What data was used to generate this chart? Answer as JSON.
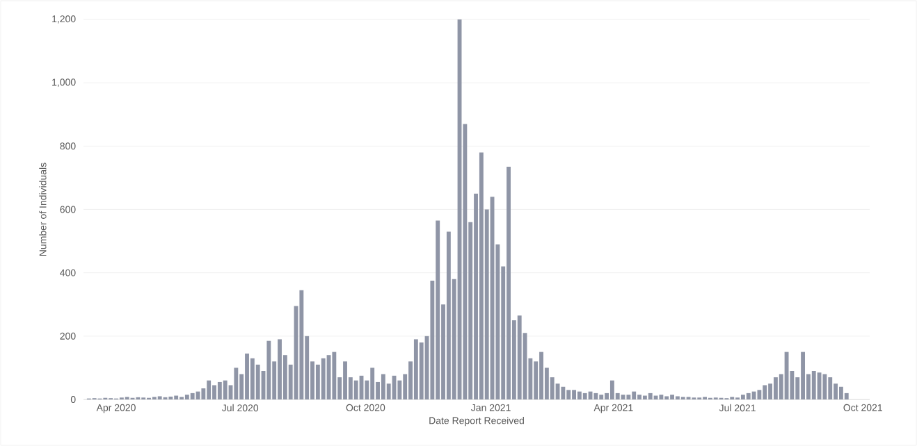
{
  "chart_data": {
    "type": "bar",
    "xlabel": "Date Report Received",
    "ylabel": "Number of Individuals",
    "color": "#8f95a6",
    "grid": "y",
    "xlim": [
      "2020-03-08",
      "2021-10-06"
    ],
    "ylim": [
      0,
      1200
    ],
    "yticks": [
      0,
      200,
      400,
      600,
      800,
      {
        "value": 1000,
        "label": "1,000"
      },
      {
        "value": 1200,
        "label": "1,200"
      }
    ],
    "xticks": [
      {
        "value": "2020-04-01",
        "label": "Apr 2020"
      },
      {
        "value": "2020-07-01",
        "label": "Jul 2020"
      },
      {
        "value": "2020-10-01",
        "label": "Oct 2020"
      },
      {
        "value": "2021-01-01",
        "label": "Jan 2021"
      },
      {
        "value": "2021-04-01",
        "label": "Apr 2021"
      },
      {
        "value": "2021-07-01",
        "label": "Jul 2021"
      },
      {
        "value": "2021-10-01",
        "label": "Oct 2021"
      }
    ],
    "x": [
      "2020-03-12",
      "2020-03-16",
      "2020-03-20",
      "2020-03-24",
      "2020-03-28",
      "2020-04-01",
      "2020-04-05",
      "2020-04-09",
      "2020-04-13",
      "2020-04-17",
      "2020-04-21",
      "2020-04-25",
      "2020-04-29",
      "2020-05-03",
      "2020-05-07",
      "2020-05-11",
      "2020-05-15",
      "2020-05-19",
      "2020-05-23",
      "2020-05-27",
      "2020-05-31",
      "2020-06-04",
      "2020-06-08",
      "2020-06-12",
      "2020-06-16",
      "2020-06-20",
      "2020-06-24",
      "2020-06-28",
      "2020-07-02",
      "2020-07-06",
      "2020-07-10",
      "2020-07-14",
      "2020-07-18",
      "2020-07-22",
      "2020-07-26",
      "2020-07-30",
      "2020-08-03",
      "2020-08-07",
      "2020-08-11",
      "2020-08-15",
      "2020-08-19",
      "2020-08-23",
      "2020-08-27",
      "2020-08-31",
      "2020-09-04",
      "2020-09-08",
      "2020-09-12",
      "2020-09-16",
      "2020-09-20",
      "2020-09-24",
      "2020-09-28",
      "2020-10-02",
      "2020-10-06",
      "2020-10-10",
      "2020-10-14",
      "2020-10-18",
      "2020-10-22",
      "2020-10-26",
      "2020-10-30",
      "2020-11-03",
      "2020-11-07",
      "2020-11-11",
      "2020-11-15",
      "2020-11-19",
      "2020-11-23",
      "2020-11-27",
      "2020-12-01",
      "2020-12-05",
      "2020-12-09",
      "2020-12-13",
      "2020-12-17",
      "2020-12-21",
      "2020-12-25",
      "2020-12-29",
      "2021-01-02",
      "2021-01-06",
      "2021-01-10",
      "2021-01-14",
      "2021-01-18",
      "2021-01-22",
      "2021-01-26",
      "2021-01-30",
      "2021-02-03",
      "2021-02-07",
      "2021-02-11",
      "2021-02-15",
      "2021-02-19",
      "2021-02-23",
      "2021-02-27",
      "2021-03-03",
      "2021-03-07",
      "2021-03-11",
      "2021-03-15",
      "2021-03-19",
      "2021-03-23",
      "2021-03-27",
      "2021-03-31",
      "2021-04-04",
      "2021-04-08",
      "2021-04-12",
      "2021-04-16",
      "2021-04-20",
      "2021-04-24",
      "2021-04-28",
      "2021-05-02",
      "2021-05-06",
      "2021-05-10",
      "2021-05-14",
      "2021-05-18",
      "2021-05-22",
      "2021-05-26",
      "2021-05-30",
      "2021-06-03",
      "2021-06-07",
      "2021-06-11",
      "2021-06-15",
      "2021-06-19",
      "2021-06-23",
      "2021-06-27",
      "2021-07-01",
      "2021-07-05",
      "2021-07-09",
      "2021-07-13",
      "2021-07-17",
      "2021-07-21",
      "2021-07-25",
      "2021-07-29",
      "2021-08-02",
      "2021-08-06",
      "2021-08-10",
      "2021-08-14",
      "2021-08-18",
      "2021-08-22",
      "2021-08-26",
      "2021-08-30",
      "2021-09-03",
      "2021-09-07",
      "2021-09-11",
      "2021-09-15",
      "2021-09-19"
    ],
    "values": [
      3,
      4,
      3,
      5,
      4,
      3,
      6,
      8,
      5,
      7,
      6,
      5,
      8,
      10,
      7,
      9,
      12,
      8,
      15,
      20,
      25,
      35,
      60,
      45,
      55,
      60,
      45,
      100,
      80,
      145,
      130,
      110,
      90,
      185,
      120,
      190,
      140,
      110,
      295,
      345,
      200,
      120,
      110,
      130,
      140,
      150,
      70,
      120,
      70,
      60,
      75,
      60,
      100,
      55,
      80,
      50,
      75,
      60,
      80,
      120,
      190,
      180,
      200,
      375,
      565,
      300,
      530,
      380,
      1200,
      870,
      560,
      650,
      780,
      600,
      640,
      490,
      420,
      735,
      250,
      265,
      210,
      130,
      120,
      150,
      100,
      70,
      50,
      40,
      30,
      30,
      25,
      20,
      25,
      20,
      15,
      20,
      60,
      20,
      15,
      15,
      25,
      15,
      12,
      20,
      12,
      15,
      10,
      15,
      10,
      8,
      8,
      6,
      6,
      8,
      5,
      6,
      5,
      4,
      8,
      6,
      15,
      20,
      25,
      30,
      45,
      50,
      70,
      80,
      150,
      90,
      70,
      150,
      80,
      90,
      85,
      80,
      70,
      50,
      40,
      20
    ]
  }
}
